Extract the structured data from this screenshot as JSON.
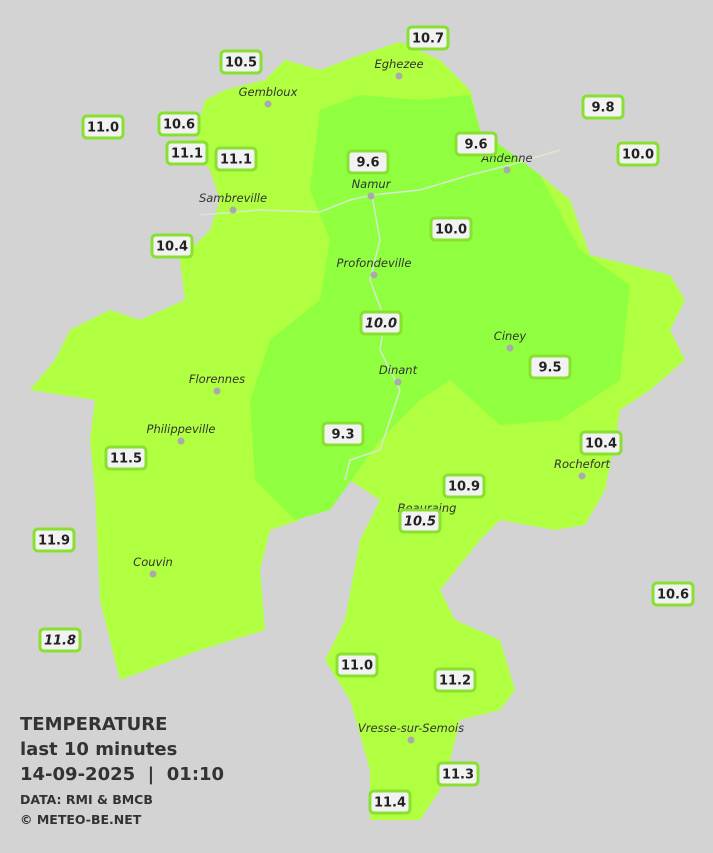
{
  "stations": [
    {
      "label": "10.7"
    },
    {
      "label": "10.5"
    },
    {
      "label": "9.8"
    },
    {
      "label": "11.0"
    },
    {
      "label": "10.6"
    },
    {
      "label": "9.6"
    },
    {
      "label": "10.0"
    },
    {
      "label": "11.1"
    },
    {
      "label": "11.1"
    },
    {
      "label": "9.6"
    },
    {
      "label": "10.0"
    },
    {
      "label": "10.4"
    },
    {
      "label": "10.0",
      "italic": true
    },
    {
      "label": "9.5"
    },
    {
      "label": "9.3"
    },
    {
      "label": "10.4"
    },
    {
      "label": "10.9"
    },
    {
      "label": "10.5",
      "italic": true
    },
    {
      "label": "11.5"
    },
    {
      "label": "11.9"
    },
    {
      "label": "10.6"
    },
    {
      "label": "11.8",
      "italic": true
    },
    {
      "label": "11.0"
    },
    {
      "label": "11.2"
    },
    {
      "label": "11.3"
    },
    {
      "label": "11.4"
    }
  ],
  "cities": [
    {
      "label": "Eghezee"
    },
    {
      "label": "Gembloux"
    },
    {
      "label": "Andenne"
    },
    {
      "label": "Namur"
    },
    {
      "label": "Sambreville"
    },
    {
      "label": "Profondeville"
    },
    {
      "label": "Ciney"
    },
    {
      "label": "Dinant"
    },
    {
      "label": "Florennes"
    },
    {
      "label": "Philippeville"
    },
    {
      "label": "Rochefort"
    },
    {
      "label": "Beauraing"
    },
    {
      "label": "Couvin"
    },
    {
      "label": "Vresse-sur-Semois"
    }
  ],
  "info": {
    "title": "TEMPERATURE",
    "period": "last 10 minutes",
    "datetime": "14-09-2025  |  01:10",
    "source": "DATA: RMI & BMCB",
    "credit": "© METEO-BE.NET"
  }
}
